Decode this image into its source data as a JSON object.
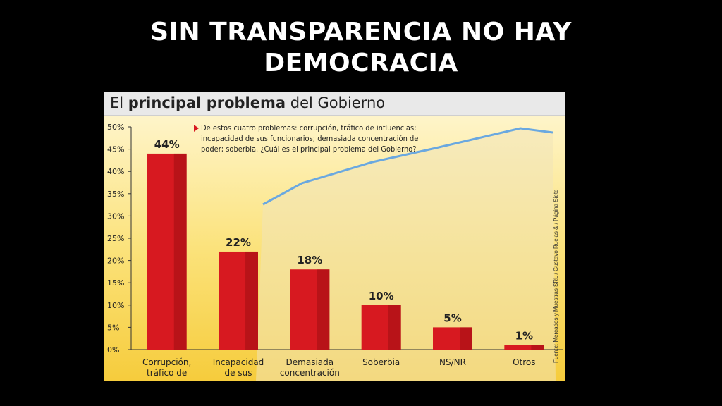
{
  "slide": {
    "title_line1": "SIN TRANSPARENCIA NO HAY",
    "title_line2": "DEMOCRACIA"
  },
  "figure": {
    "title_regular_1": "El",
    "title_bold": "principal problema",
    "title_regular_2": "del Gobierno",
    "question": "De estos cuatro problemas: corrupción, tráfico de influencias; incapacidad de sus funcionarios; demasiada concentración de poder; soberbia. ¿Cuál es el principal problema del Gobierno?",
    "source": "Fuente: Mercados y Muestras SRL / Gustavo Ruelas & / Página Siete"
  },
  "chart_data": {
    "type": "bar",
    "categories": [
      [
        "Corrupción,",
        "tráfico de"
      ],
      [
        "Incapacidad",
        "de sus"
      ],
      [
        "Demasiada",
        "concentración"
      ],
      [
        "Soberbia"
      ],
      [
        "NS/NR"
      ],
      [
        "Otros"
      ]
    ],
    "values": [
      44,
      22,
      18,
      10,
      5,
      1
    ],
    "value_labels": [
      "44%",
      "22%",
      "18%",
      "10%",
      "5%",
      "1%"
    ],
    "yticks": [
      "0%",
      "5%",
      "10%",
      "15%",
      "20%",
      "25%",
      "30%",
      "35%",
      "40%",
      "45%",
      "50%"
    ],
    "ylim": [
      0,
      50
    ],
    "colors": {
      "bar": "#d71920",
      "bar_dark": "#9e0f13",
      "axis": "#333333"
    }
  }
}
